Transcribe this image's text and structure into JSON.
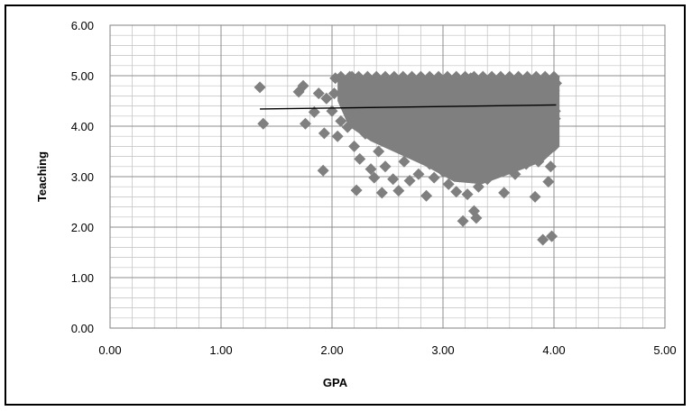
{
  "chart_data": {
    "type": "scatter",
    "title": "",
    "xlabel": "GPA",
    "ylabel": "Teaching",
    "xlim": [
      0,
      5
    ],
    "ylim": [
      0,
      6
    ],
    "x_ticks": [
      "0.00",
      "1.00",
      "2.00",
      "3.00",
      "4.00",
      "5.00"
    ],
    "y_ticks": [
      "0.00",
      "1.00",
      "2.00",
      "3.00",
      "4.00",
      "5.00",
      "6.00"
    ],
    "grid": true,
    "legend": "none",
    "marker_color": "#7f7f7f",
    "trendline_color": "#000000",
    "grid_color": "#c0c0c0",
    "series": [
      {
        "marker": "diamond",
        "points": [
          [
            1.35,
            4.77
          ],
          [
            1.38,
            4.05
          ],
          [
            1.7,
            4.68
          ],
          [
            1.74,
            4.8
          ],
          [
            1.76,
            4.05
          ],
          [
            1.84,
            4.28
          ],
          [
            1.88,
            4.65
          ],
          [
            1.92,
            3.12
          ],
          [
            1.93,
            3.86
          ],
          [
            1.95,
            4.55
          ],
          [
            2.0,
            4.3
          ],
          [
            2.02,
            4.65
          ],
          [
            2.03,
            4.95
          ],
          [
            2.05,
            3.8
          ],
          [
            2.08,
            4.1
          ],
          [
            2.12,
            4.4
          ],
          [
            2.14,
            3.98
          ],
          [
            2.18,
            4.98
          ],
          [
            2.2,
            3.6
          ],
          [
            2.22,
            2.73
          ],
          [
            2.25,
            3.35
          ],
          [
            2.28,
            4.7
          ],
          [
            2.3,
            3.85
          ],
          [
            2.35,
            3.15
          ],
          [
            2.38,
            2.98
          ],
          [
            2.42,
            3.5
          ],
          [
            2.45,
            2.68
          ],
          [
            2.48,
            3.2
          ],
          [
            2.52,
            3.75
          ],
          [
            2.55,
            2.95
          ],
          [
            2.58,
            3.95
          ],
          [
            2.6,
            2.72
          ],
          [
            2.65,
            3.3
          ],
          [
            2.7,
            2.92
          ],
          [
            2.72,
            3.55
          ],
          [
            2.78,
            3.05
          ],
          [
            2.82,
            3.4
          ],
          [
            2.85,
            2.62
          ],
          [
            2.88,
            3.25
          ],
          [
            2.92,
            2.98
          ],
          [
            2.95,
            3.65
          ],
          [
            3.0,
            3.1
          ],
          [
            3.05,
            2.85
          ],
          [
            3.1,
            3.45
          ],
          [
            3.12,
            2.7
          ],
          [
            3.15,
            3.0
          ],
          [
            3.18,
            2.12
          ],
          [
            3.22,
            2.65
          ],
          [
            3.25,
            3.2
          ],
          [
            3.28,
            2.32
          ],
          [
            3.3,
            2.18
          ],
          [
            3.32,
            2.8
          ],
          [
            3.35,
            3.35
          ],
          [
            3.4,
            2.95
          ],
          [
            3.45,
            3.6
          ],
          [
            3.5,
            3.1
          ],
          [
            3.55,
            2.68
          ],
          [
            3.6,
            3.4
          ],
          [
            3.65,
            3.05
          ],
          [
            3.7,
            3.75
          ],
          [
            3.75,
            3.25
          ],
          [
            3.8,
            3.5
          ],
          [
            3.83,
            2.6
          ],
          [
            3.86,
            3.3
          ],
          [
            3.9,
            1.75
          ],
          [
            3.93,
            3.7
          ],
          [
            3.95,
            2.9
          ],
          [
            3.97,
            3.2
          ],
          [
            3.98,
            1.82
          ],
          [
            4.0,
            3.6
          ],
          [
            4.01,
            4.15
          ],
          [
            4.02,
            4.85
          ],
          [
            2.4,
            4.95
          ],
          [
            2.5,
            4.75
          ],
          [
            2.6,
            4.55
          ],
          [
            2.7,
            4.35
          ],
          [
            2.8,
            4.15
          ],
          [
            2.9,
            3.95
          ],
          [
            3.0,
            4.8
          ],
          [
            3.1,
            4.6
          ],
          [
            3.2,
            4.4
          ],
          [
            3.3,
            4.2
          ],
          [
            3.4,
            4.0
          ],
          [
            3.5,
            4.85
          ],
          [
            3.6,
            4.65
          ],
          [
            3.7,
            4.45
          ],
          [
            3.8,
            4.25
          ],
          [
            3.9,
            4.05
          ],
          [
            3.95,
            4.9
          ],
          [
            4.0,
            4.7
          ],
          [
            2.3,
            4.5
          ],
          [
            2.45,
            4.2
          ],
          [
            2.55,
            4.0
          ],
          [
            2.65,
            3.8
          ],
          [
            2.75,
            4.9
          ],
          [
            2.85,
            4.6
          ],
          [
            2.95,
            4.3
          ],
          [
            3.05,
            4.0
          ],
          [
            3.15,
            3.8
          ],
          [
            3.25,
            4.95
          ],
          [
            3.35,
            4.7
          ],
          [
            3.45,
            4.45
          ],
          [
            3.55,
            4.15
          ],
          [
            3.65,
            3.9
          ],
          [
            3.75,
            4.95
          ],
          [
            3.85,
            4.7
          ],
          [
            3.92,
            4.45
          ],
          [
            4.01,
            4.3
          ]
        ]
      }
    ],
    "trendline": {
      "type": "linear",
      "points": [
        [
          1.35,
          4.34
        ],
        [
          4.02,
          4.42
        ]
      ]
    }
  }
}
